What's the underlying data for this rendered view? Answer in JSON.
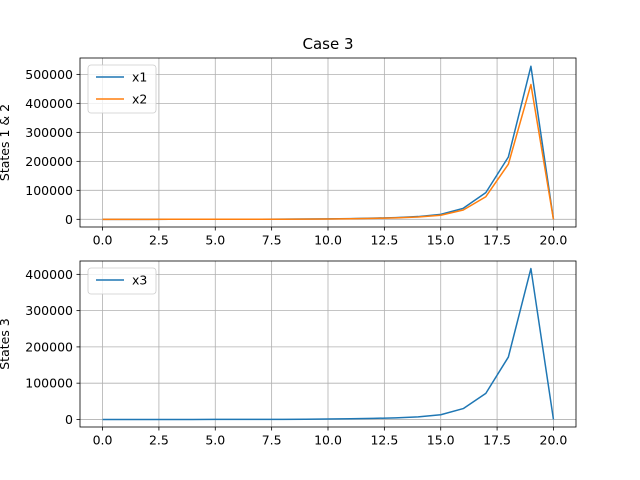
{
  "chart_data": [
    {
      "type": "line",
      "title": "Case 3",
      "xlabel": "",
      "ylabel": "States 1 & 2",
      "xlim": [
        -1,
        21
      ],
      "ylim": [
        -26500,
        556500
      ],
      "xticks": [
        0,
        2.5,
        5,
        7.5,
        10,
        12.5,
        15,
        17.5,
        20
      ],
      "xtick_labels": [
        "0.0",
        "2.5",
        "5.0",
        "7.5",
        "10.0",
        "12.5",
        "15.0",
        "17.5",
        "20.0"
      ],
      "yticks": [
        0,
        100000,
        200000,
        300000,
        400000,
        500000
      ],
      "ytick_labels": [
        "0",
        "100000",
        "200000",
        "300000",
        "400000",
        "500000"
      ],
      "grid": true,
      "legend": "upper left",
      "x": [
        0,
        1,
        2,
        3,
        4,
        5,
        6,
        7,
        8,
        9,
        10,
        11,
        12,
        13,
        14,
        15,
        16,
        17,
        18,
        19,
        20
      ],
      "series": [
        {
          "name": "x1",
          "color": "#1f77b4",
          "values": [
            0,
            5,
            10,
            20,
            40,
            80,
            150,
            280,
            500,
            900,
            1500,
            2500,
            4000,
            6000,
            9500,
            17000,
            38000,
            92000,
            215000,
            528000,
            0
          ]
        },
        {
          "name": "x2",
          "color": "#ff7f0e",
          "values": [
            0,
            4,
            8,
            16,
            32,
            65,
            125,
            230,
            420,
            750,
            1250,
            2100,
            3300,
            5000,
            8000,
            14000,
            32000,
            78000,
            190000,
            465000,
            0
          ]
        }
      ]
    },
    {
      "type": "line",
      "title": "",
      "xlabel": "",
      "ylabel": "States 3",
      "xlim": [
        -1,
        21
      ],
      "ylim": [
        -20800,
        436800
      ],
      "xticks": [
        0,
        2.5,
        5,
        7.5,
        10,
        12.5,
        15,
        17.5,
        20
      ],
      "xtick_labels": [
        "0.0",
        "2.5",
        "5.0",
        "7.5",
        "10.0",
        "12.5",
        "15.0",
        "17.5",
        "20.0"
      ],
      "yticks": [
        0,
        100000,
        200000,
        300000,
        400000
      ],
      "ytick_labels": [
        "0",
        "100000",
        "200000",
        "300000",
        "400000"
      ],
      "grid": true,
      "legend": "upper left",
      "x": [
        0,
        1,
        2,
        3,
        4,
        5,
        6,
        7,
        8,
        9,
        10,
        11,
        12,
        13,
        14,
        15,
        16,
        17,
        18,
        19,
        20
      ],
      "series": [
        {
          "name": "x3",
          "color": "#1f77b4",
          "values": [
            0,
            3,
            7,
            14,
            28,
            55,
            110,
            200,
            360,
            650,
            1100,
            1800,
            2900,
            4400,
            7200,
            13000,
            30000,
            72000,
            172000,
            416000,
            0
          ]
        }
      ]
    }
  ]
}
